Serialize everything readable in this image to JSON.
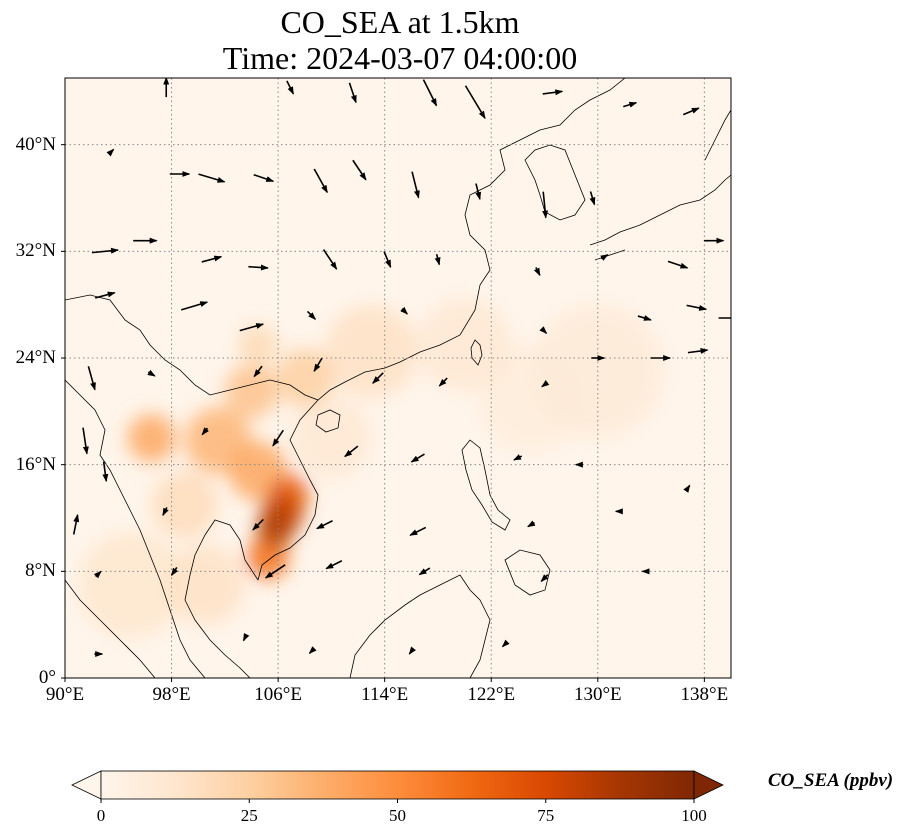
{
  "title": {
    "line1": "CO_SEA at 1.5km",
    "line2": "Time: 2024-03-07 04:00:00"
  },
  "map": {
    "lon_range": [
      90,
      140
    ],
    "lat_range": [
      0,
      45
    ],
    "lon_ticks": [
      90,
      98,
      106,
      114,
      122,
      130,
      138
    ],
    "lat_ticks": [
      0,
      8,
      16,
      24,
      32,
      40
    ],
    "lon_tick_labels": [
      "90°E",
      "98°E",
      "106°E",
      "114°E",
      "122°E",
      "130°E",
      "138°E"
    ],
    "lat_tick_labels": [
      "0°",
      "8°N",
      "16°N",
      "24°N",
      "32°N",
      "40°N"
    ],
    "gridlines": true,
    "coastlines": true,
    "variable": "CO_SEA",
    "plumes": [
      {
        "lon": 106.3,
        "lat": 12.4,
        "value": 80,
        "r": 1.6
      },
      {
        "lon": 105.8,
        "lat": 11.2,
        "value": 85,
        "r": 1.4
      },
      {
        "lon": 106.8,
        "lat": 13.8,
        "value": 65,
        "r": 1.5
      },
      {
        "lon": 105.2,
        "lat": 9.0,
        "value": 60,
        "r": 1.6
      },
      {
        "lon": 104.5,
        "lat": 15.5,
        "value": 40,
        "r": 2.2
      },
      {
        "lon": 101.5,
        "lat": 17.8,
        "value": 35,
        "r": 2.5
      },
      {
        "lon": 96.5,
        "lat": 18.0,
        "value": 40,
        "r": 1.8
      },
      {
        "lon": 104.0,
        "lat": 21.5,
        "value": 30,
        "r": 2.0
      },
      {
        "lon": 108.0,
        "lat": 22.5,
        "value": 25,
        "r": 2.2
      },
      {
        "lon": 104.5,
        "lat": 25.0,
        "value": 20,
        "r": 1.5
      },
      {
        "lon": 113.0,
        "lat": 24.5,
        "value": 15,
        "r": 3.5
      },
      {
        "lon": 120.0,
        "lat": 25.0,
        "value": 10,
        "r": 3.5
      },
      {
        "lon": 95.0,
        "lat": 7.0,
        "value": 12,
        "r": 4.0
      },
      {
        "lon": 100.5,
        "lat": 7.0,
        "value": 15,
        "r": 3.0
      },
      {
        "lon": 130.0,
        "lat": 23.0,
        "value": 8,
        "r": 5.0
      },
      {
        "lon": 125.0,
        "lat": 21.0,
        "value": 7,
        "r": 4.0
      },
      {
        "lon": 110.0,
        "lat": 18.0,
        "value": 10,
        "r": 3.0
      },
      {
        "lon": 99.0,
        "lat": 13.0,
        "value": 18,
        "r": 2.5
      }
    ],
    "wind_vectors": [
      {
        "lon": 97.6,
        "lat": 44.3,
        "u": 0.0,
        "v": 1.5
      },
      {
        "lon": 106.9,
        "lat": 44.3,
        "u": 0.5,
        "v": -1.0
      },
      {
        "lon": 111.6,
        "lat": 43.9,
        "u": 0.5,
        "v": -1.5
      },
      {
        "lon": 117.4,
        "lat": 43.9,
        "u": 1.0,
        "v": -2.0
      },
      {
        "lon": 120.8,
        "lat": 43.2,
        "u": 1.5,
        "v": -2.5
      },
      {
        "lon": 126.6,
        "lat": 43.9,
        "u": 1.5,
        "v": 0.2
      },
      {
        "lon": 132.4,
        "lat": 43.0,
        "u": 1.0,
        "v": 0.3
      },
      {
        "lon": 137.0,
        "lat": 42.5,
        "u": 1.2,
        "v": 0.5
      },
      {
        "lon": 93.5,
        "lat": 39.5,
        "u": 0.3,
        "v": 0.3
      },
      {
        "lon": 98.6,
        "lat": 37.8,
        "u": 1.5,
        "v": 0.0
      },
      {
        "lon": 101.0,
        "lat": 37.5,
        "u": 2.0,
        "v": -0.6
      },
      {
        "lon": 104.9,
        "lat": 37.5,
        "u": 1.5,
        "v": -0.5
      },
      {
        "lon": 109.2,
        "lat": 37.3,
        "u": 1.0,
        "v": -1.8
      },
      {
        "lon": 112.1,
        "lat": 38.1,
        "u": 1.0,
        "v": -1.5
      },
      {
        "lon": 116.3,
        "lat": 37.0,
        "u": 0.5,
        "v": -2.0
      },
      {
        "lon": 121.0,
        "lat": 36.5,
        "u": 0.3,
        "v": -1.2
      },
      {
        "lon": 126.0,
        "lat": 35.5,
        "u": 0.2,
        "v": -2.0
      },
      {
        "lon": 129.6,
        "lat": 36.0,
        "u": 0.3,
        "v": -1.0
      },
      {
        "lon": 93.0,
        "lat": 32.0,
        "u": 2.0,
        "v": 0.2
      },
      {
        "lon": 96.0,
        "lat": 32.8,
        "u": 1.8,
        "v": 0.0
      },
      {
        "lon": 101.0,
        "lat": 31.4,
        "u": 1.5,
        "v": 0.4
      },
      {
        "lon": 104.5,
        "lat": 30.8,
        "u": 1.5,
        "v": -0.1
      },
      {
        "lon": 109.9,
        "lat": 31.4,
        "u": 1.0,
        "v": -1.5
      },
      {
        "lon": 114.2,
        "lat": 31.4,
        "u": 0.5,
        "v": -1.2
      },
      {
        "lon": 118.0,
        "lat": 31.4,
        "u": 0.2,
        "v": -0.8
      },
      {
        "lon": 125.5,
        "lat": 30.5,
        "u": 0.3,
        "v": -0.6
      },
      {
        "lon": 130.5,
        "lat": 31.6,
        "u": 0.5,
        "v": 0.3
      },
      {
        "lon": 136.0,
        "lat": 31.0,
        "u": 1.5,
        "v": -0.5
      },
      {
        "lon": 138.7,
        "lat": 32.8,
        "u": 1.5,
        "v": 0.0
      },
      {
        "lon": 93.0,
        "lat": 28.7,
        "u": 1.5,
        "v": 0.4
      },
      {
        "lon": 99.7,
        "lat": 27.9,
        "u": 2.0,
        "v": 0.6
      },
      {
        "lon": 104.0,
        "lat": 26.3,
        "u": 1.8,
        "v": 0.5
      },
      {
        "lon": 108.5,
        "lat": 27.2,
        "u": 0.6,
        "v": -0.6
      },
      {
        "lon": 115.5,
        "lat": 27.5,
        "u": 0.4,
        "v": -0.4
      },
      {
        "lon": 126.0,
        "lat": 26.0,
        "u": 0.3,
        "v": -0.3
      },
      {
        "lon": 133.5,
        "lat": 27.0,
        "u": 1.0,
        "v": -0.3
      },
      {
        "lon": 137.4,
        "lat": 27.8,
        "u": 1.5,
        "v": -0.3
      },
      {
        "lon": 139.8,
        "lat": 27.0,
        "u": 1.5,
        "v": 0.0
      },
      {
        "lon": 92.0,
        "lat": 22.5,
        "u": 0.5,
        "v": -1.8
      },
      {
        "lon": 96.5,
        "lat": 22.8,
        "u": 0.5,
        "v": -0.3
      },
      {
        "lon": 104.5,
        "lat": 23.0,
        "u": -0.6,
        "v": -0.8
      },
      {
        "lon": 109.0,
        "lat": 23.5,
        "u": -0.6,
        "v": -1.0
      },
      {
        "lon": 113.5,
        "lat": 22.5,
        "u": -0.8,
        "v": -0.8
      },
      {
        "lon": 118.4,
        "lat": 22.2,
        "u": -0.6,
        "v": -0.6
      },
      {
        "lon": 126.0,
        "lat": 22.0,
        "u": -0.4,
        "v": -0.3
      },
      {
        "lon": 130.0,
        "lat": 24.0,
        "u": 1.0,
        "v": 0.0
      },
      {
        "lon": 134.7,
        "lat": 24.0,
        "u": 1.5,
        "v": 0.0
      },
      {
        "lon": 137.5,
        "lat": 24.5,
        "u": 1.5,
        "v": 0.2
      },
      {
        "lon": 91.5,
        "lat": 17.8,
        "u": 0.3,
        "v": -2.0
      },
      {
        "lon": 93.0,
        "lat": 15.5,
        "u": 0.2,
        "v": -1.5
      },
      {
        "lon": 100.5,
        "lat": 18.5,
        "u": -0.4,
        "v": -0.5
      },
      {
        "lon": 106.0,
        "lat": 18.0,
        "u": -0.8,
        "v": -1.2
      },
      {
        "lon": 111.5,
        "lat": 17.0,
        "u": -1.0,
        "v": -0.8
      },
      {
        "lon": 116.5,
        "lat": 16.5,
        "u": -1.0,
        "v": -0.6
      },
      {
        "lon": 124.0,
        "lat": 16.5,
        "u": -0.6,
        "v": -0.3
      },
      {
        "lon": 128.5,
        "lat": 16.0,
        "u": -0.3,
        "v": 0.0
      },
      {
        "lon": 136.8,
        "lat": 14.3,
        "u": 0.2,
        "v": 0.3
      },
      {
        "lon": 90.8,
        "lat": 11.5,
        "u": 0.3,
        "v": 1.5
      },
      {
        "lon": 97.5,
        "lat": 12.5,
        "u": -0.3,
        "v": -0.6
      },
      {
        "lon": 104.5,
        "lat": 11.5,
        "u": -0.8,
        "v": -0.8
      },
      {
        "lon": 109.5,
        "lat": 11.5,
        "u": -1.2,
        "v": -0.6
      },
      {
        "lon": 116.5,
        "lat": 11.0,
        "u": -1.2,
        "v": -0.6
      },
      {
        "lon": 125.0,
        "lat": 11.5,
        "u": -0.5,
        "v": -0.3
      },
      {
        "lon": 131.5,
        "lat": 12.5,
        "u": -0.3,
        "v": 0.0
      },
      {
        "lon": 92.5,
        "lat": 7.8,
        "u": 0.4,
        "v": 0.4
      },
      {
        "lon": 98.2,
        "lat": 8.0,
        "u": -0.4,
        "v": -0.6
      },
      {
        "lon": 105.8,
        "lat": 8.0,
        "u": -1.5,
        "v": -1.0
      },
      {
        "lon": 110.2,
        "lat": 8.5,
        "u": -1.2,
        "v": -0.6
      },
      {
        "lon": 117.0,
        "lat": 8.0,
        "u": -0.8,
        "v": -0.5
      },
      {
        "lon": 126.0,
        "lat": 7.5,
        "u": -0.5,
        "v": -0.5
      },
      {
        "lon": 133.5,
        "lat": 8.0,
        "u": -0.3,
        "v": 0.0
      },
      {
        "lon": 92.5,
        "lat": 1.8,
        "u": 0.6,
        "v": 0.0
      },
      {
        "lon": 103.5,
        "lat": 3.0,
        "u": -0.2,
        "v": -0.4
      },
      {
        "lon": 108.5,
        "lat": 2.0,
        "u": -0.3,
        "v": -0.3
      },
      {
        "lon": 116.0,
        "lat": 2.0,
        "u": -0.3,
        "v": -0.4
      },
      {
        "lon": 123.0,
        "lat": 2.5,
        "u": -0.3,
        "v": -0.3
      }
    ]
  },
  "colorbar": {
    "label": "CO_SEA (ppbv)",
    "ticks": [
      0,
      25,
      50,
      75,
      100
    ],
    "tick_labels": [
      "0",
      "25",
      "50",
      "75",
      "100"
    ],
    "range": [
      0,
      100
    ],
    "extend": "both",
    "colors": [
      "#fff5eb",
      "#fee6ce",
      "#fdd0a2",
      "#fdae6b",
      "#fd8d3c",
      "#f16913",
      "#d94801",
      "#a63603",
      "#7f2704"
    ]
  }
}
